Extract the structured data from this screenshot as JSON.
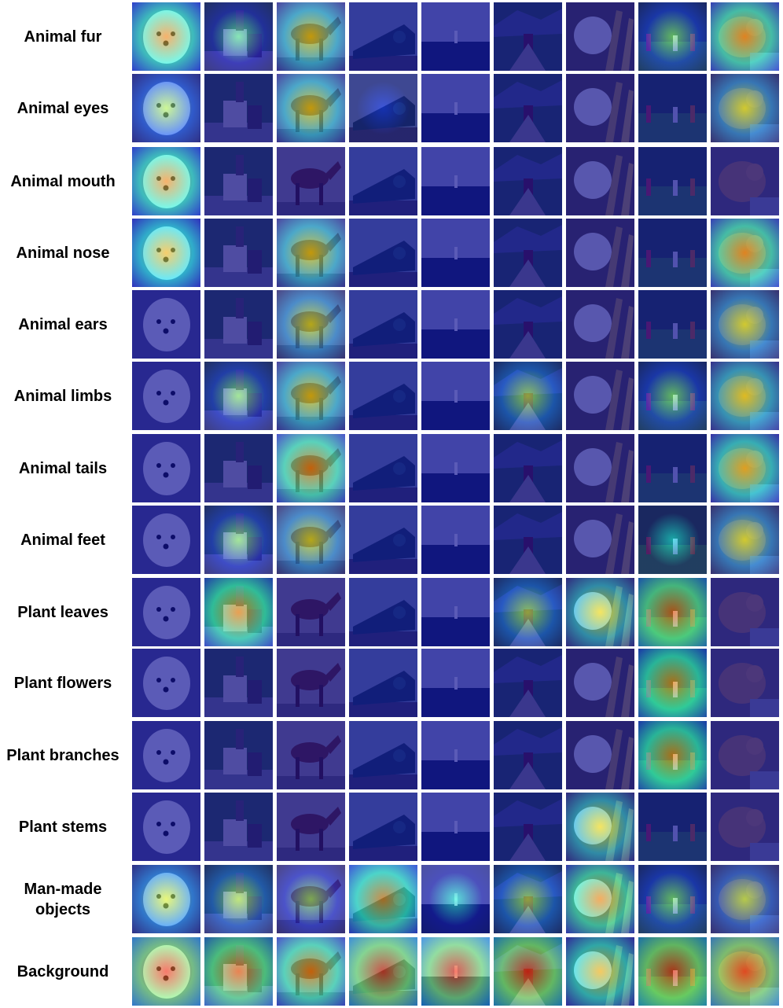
{
  "figure": {
    "row_labels": [
      "Animal fur",
      "Animal eyes",
      "Animal mouth",
      "Animal nose",
      "Animal ears",
      "Animal limbs",
      "Animal tails",
      "Animal feet",
      "Plant leaves",
      "Plant flowers",
      "Plant branches",
      "Plant stems",
      "Man-made\nobjects",
      "Background"
    ],
    "image_subjects": [
      "white fluffy dog",
      "donkey cart",
      "brown horse",
      "steam locomotive",
      "lighthouse at sea",
      "cyclist on hill path",
      "cauliflower",
      "people on lawn",
      "monkey"
    ],
    "colormap": "jet",
    "heat_levels": [
      [
        0.75,
        0.45,
        0.65,
        0.05,
        0.0,
        0.05,
        0.05,
        0.5,
        0.75
      ],
      [
        0.55,
        0.05,
        0.65,
        0.15,
        0.0,
        0.05,
        0.05,
        0.05,
        0.6
      ],
      [
        0.75,
        0.05,
        0.05,
        0.1,
        0.0,
        0.05,
        0.05,
        0.05,
        0.05
      ],
      [
        0.7,
        0.05,
        0.65,
        0.1,
        0.0,
        0.05,
        0.05,
        0.05,
        0.75
      ],
      [
        0.0,
        0.05,
        0.6,
        0.1,
        0.0,
        0.05,
        0.05,
        0.05,
        0.6
      ],
      [
        0.05,
        0.5,
        0.65,
        0.1,
        0.0,
        0.55,
        0.05,
        0.5,
        0.65
      ],
      [
        0.05,
        0.05,
        0.75,
        0.1,
        0.0,
        0.05,
        0.05,
        0.05,
        0.7
      ],
      [
        0.05,
        0.5,
        0.6,
        0.1,
        0.0,
        0.05,
        0.05,
        0.35,
        0.6
      ],
      [
        0.05,
        0.75,
        0.05,
        0.1,
        0.0,
        0.55,
        0.65,
        0.8,
        0.05
      ],
      [
        0.05,
        0.05,
        0.05,
        0.1,
        0.0,
        0.05,
        0.05,
        0.75,
        0.05
      ],
      [
        0.05,
        0.05,
        0.05,
        0.1,
        0.0,
        0.05,
        0.05,
        0.75,
        0.05
      ],
      [
        0.05,
        0.05,
        0.05,
        0.1,
        0.0,
        0.05,
        0.65,
        0.05,
        0.05
      ],
      [
        0.6,
        0.55,
        0.5,
        0.75,
        0.4,
        0.55,
        0.75,
        0.5,
        0.55
      ],
      [
        0.85,
        0.8,
        0.75,
        0.85,
        0.85,
        0.85,
        0.7,
        0.85,
        0.85
      ]
    ]
  }
}
